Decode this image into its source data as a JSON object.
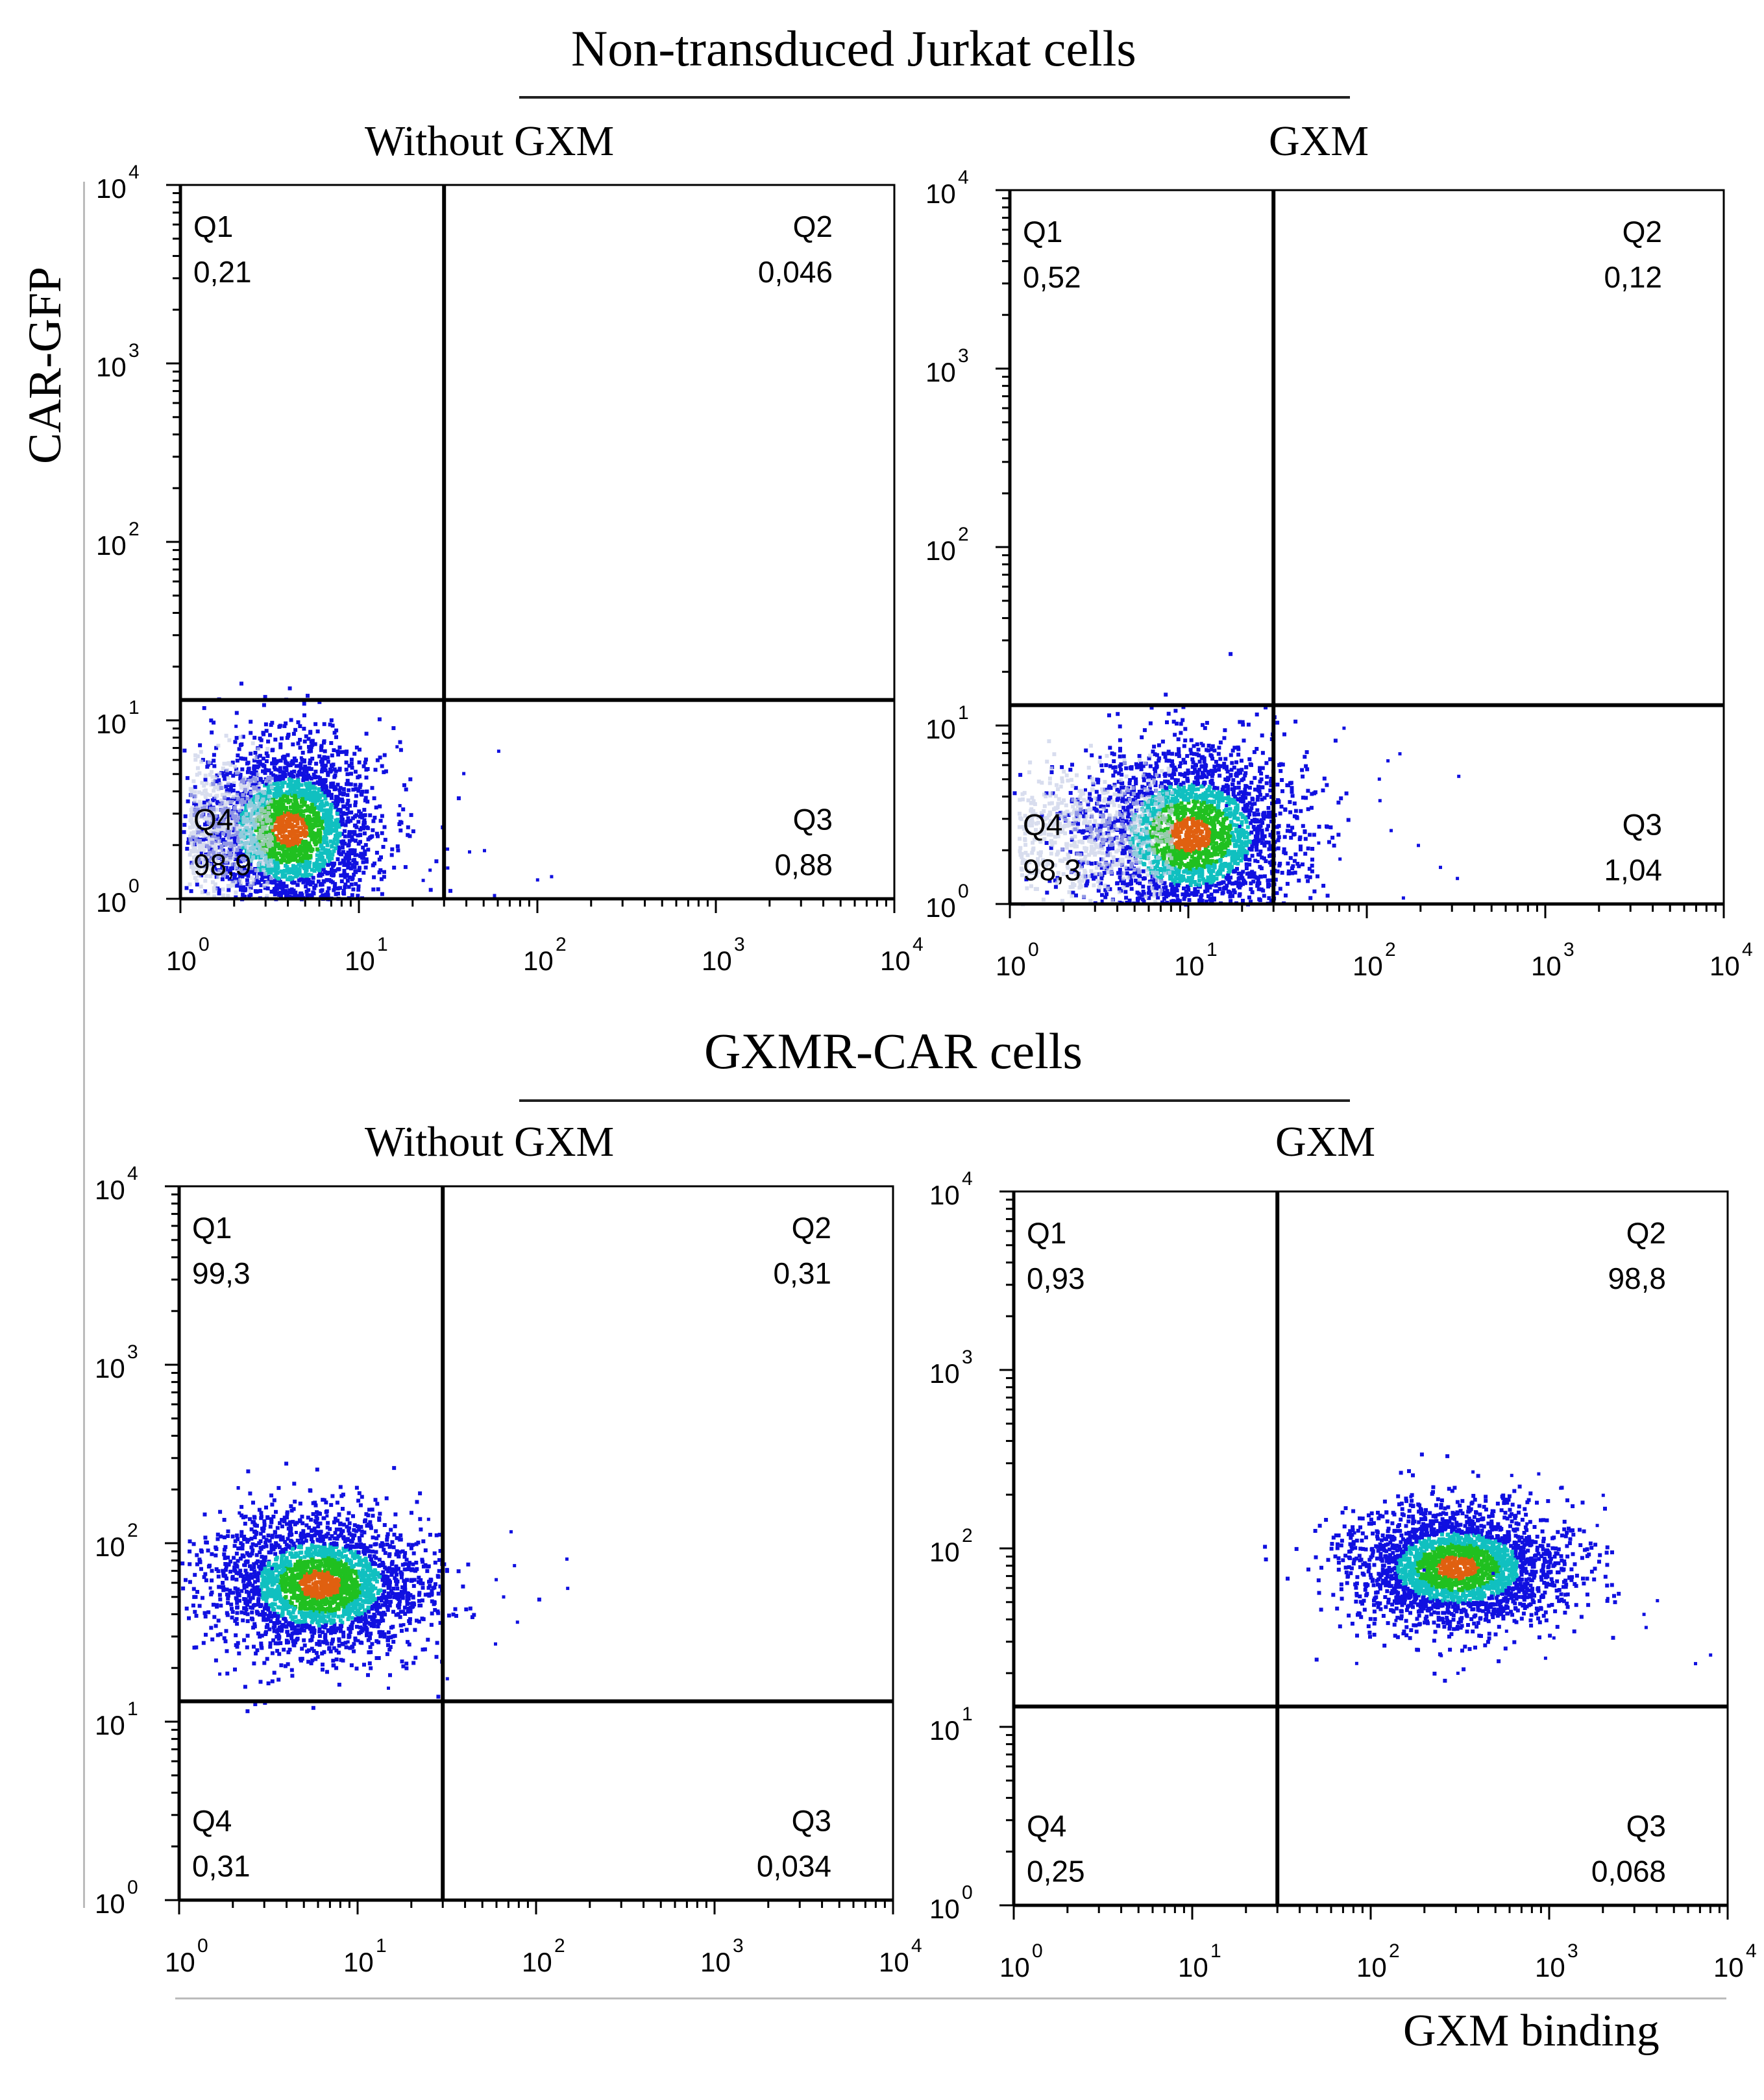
{
  "section_top": {
    "title": "Non-transduced Jurkat cells"
  },
  "section_bottom": {
    "title": "GXMR-CAR cells"
  },
  "axis": {
    "ylabel": "CAR-GFP",
    "xlabel": "GXM binding"
  },
  "chart_data": [
    {
      "type": "scatter",
      "title": "Without GXM",
      "group": "Non-transduced Jurkat cells",
      "xlabel": "GXM binding",
      "ylabel": "CAR-GFP",
      "xscale": "log",
      "yscale": "log",
      "xlim": [
        1,
        10000
      ],
      "ylim": [
        1,
        10000
      ],
      "x_ticks": [
        "10^0",
        "10^1",
        "10^2",
        "10^3",
        "10^4"
      ],
      "y_ticks": [
        "10^0",
        "10^1",
        "10^2",
        "10^3",
        "10^4"
      ],
      "gate": {
        "x": 30,
        "y": 13
      },
      "quadrants": [
        {
          "name": "Q1",
          "value": "0,21"
        },
        {
          "name": "Q2",
          "value": "0,046"
        },
        {
          "name": "Q3",
          "value": "0,88"
        },
        {
          "name": "Q4",
          "value": "98,9"
        }
      ],
      "population": {
        "center_x": 4,
        "center_y": 2.5,
        "spread_x": 0.25,
        "spread_y": 0.25
      }
    },
    {
      "type": "scatter",
      "title": "GXM",
      "group": "Non-transduced Jurkat cells",
      "xlabel": "GXM binding",
      "ylabel": "CAR-GFP",
      "xscale": "log",
      "yscale": "log",
      "xlim": [
        1,
        10000
      ],
      "ylim": [
        1,
        10000
      ],
      "x_ticks": [
        "10^0",
        "10^1",
        "10^2",
        "10^3",
        "10^4"
      ],
      "y_ticks": [
        "10^0",
        "10^1",
        "10^2",
        "10^3",
        "10^4"
      ],
      "gate": {
        "x": 30,
        "y": 13
      },
      "quadrants": [
        {
          "name": "Q1",
          "value": "0,52"
        },
        {
          "name": "Q2",
          "value": "0,12"
        },
        {
          "name": "Q3",
          "value": "1,04"
        },
        {
          "name": "Q4",
          "value": "98,3"
        }
      ],
      "population": {
        "center_x": 10,
        "center_y": 2.5,
        "spread_x": 0.3,
        "spread_y": 0.25
      }
    },
    {
      "type": "scatter",
      "title": "Without GXM",
      "group": "GXMR-CAR cells",
      "xlabel": "GXM binding",
      "ylabel": "CAR-GFP",
      "xscale": "log",
      "yscale": "log",
      "xlim": [
        1,
        10000
      ],
      "ylim": [
        1,
        10000
      ],
      "x_ticks": [
        "10^0",
        "10^1",
        "10^2",
        "10^3",
        "10^4"
      ],
      "y_ticks": [
        "10^0",
        "10^1",
        "10^2",
        "10^3",
        "10^4"
      ],
      "gate": {
        "x": 30,
        "y": 13
      },
      "quadrants": [
        {
          "name": "Q1",
          "value": "99,3"
        },
        {
          "name": "Q2",
          "value": "0,31"
        },
        {
          "name": "Q3",
          "value": "0,034"
        },
        {
          "name": "Q4",
          "value": "0,31"
        }
      ],
      "population": {
        "center_x": 6,
        "center_y": 60,
        "spread_x": 0.3,
        "spread_y": 0.2
      }
    },
    {
      "type": "scatter",
      "title": "GXM",
      "group": "GXMR-CAR cells",
      "xlabel": "GXM binding",
      "ylabel": "CAR-GFP",
      "xscale": "log",
      "yscale": "log",
      "xlim": [
        1,
        10000
      ],
      "ylim": [
        1,
        10000
      ],
      "x_ticks": [
        "10^0",
        "10^1",
        "10^2",
        "10^3",
        "10^4"
      ],
      "y_ticks": [
        "10^0",
        "10^1",
        "10^2",
        "10^3",
        "10^4"
      ],
      "gate": {
        "x": 30,
        "y": 13
      },
      "quadrants": [
        {
          "name": "Q1",
          "value": "0,93"
        },
        {
          "name": "Q2",
          "value": "98,8"
        },
        {
          "name": "Q3",
          "value": "0,068"
        },
        {
          "name": "Q4",
          "value": "0,25"
        }
      ],
      "population": {
        "center_x": 300,
        "center_y": 80,
        "spread_x": 0.3,
        "spread_y": 0.17
      }
    }
  ],
  "colors": {
    "low": "#1010e0",
    "mid": "#10c0c0",
    "high": "#20c020",
    "peak": "#e06010",
    "light": "#c8d0e8"
  }
}
